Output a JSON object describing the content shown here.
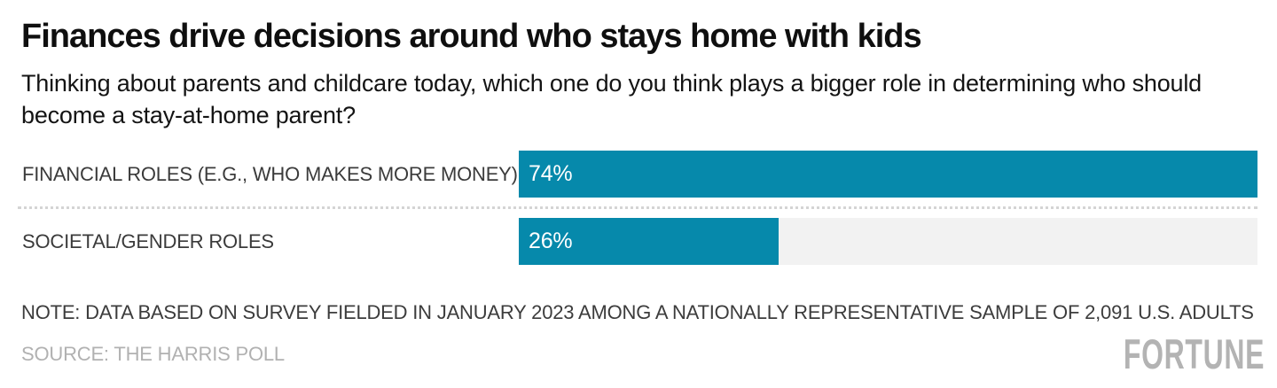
{
  "header": {
    "title": "Finances drive decisions around who stays home with kids",
    "subtitle": "Thinking about parents and childcare today, which one do you think plays a bigger role in determining who should become a stay-at-home parent?"
  },
  "chart_data": {
    "type": "bar",
    "orientation": "horizontal",
    "title": "Finances drive decisions around who stays home with kids",
    "categories": [
      "FINANCIAL ROLES (E.G., WHO MAKES MORE MONEY)",
      "SOCIETAL/GENDER ROLES"
    ],
    "values": [
      74,
      26
    ],
    "value_labels": [
      "74%",
      "26%"
    ],
    "xlim": [
      0,
      74
    ],
    "grid": false,
    "legend": false,
    "bar_color": "#0689ab",
    "track_color": "#f2f2f2",
    "value_label_color": "#ffffff",
    "divider_style": "dotted"
  },
  "footer": {
    "note": "NOTE: DATA BASED ON SURVEY FIELDED IN JANUARY 2023 AMONG A NATIONALLY REPRESENTATIVE SAMPLE OF 2,091 U.S. ADULTS",
    "source": "SOURCE: THE HARRIS POLL",
    "brand": "FORTUNE"
  }
}
